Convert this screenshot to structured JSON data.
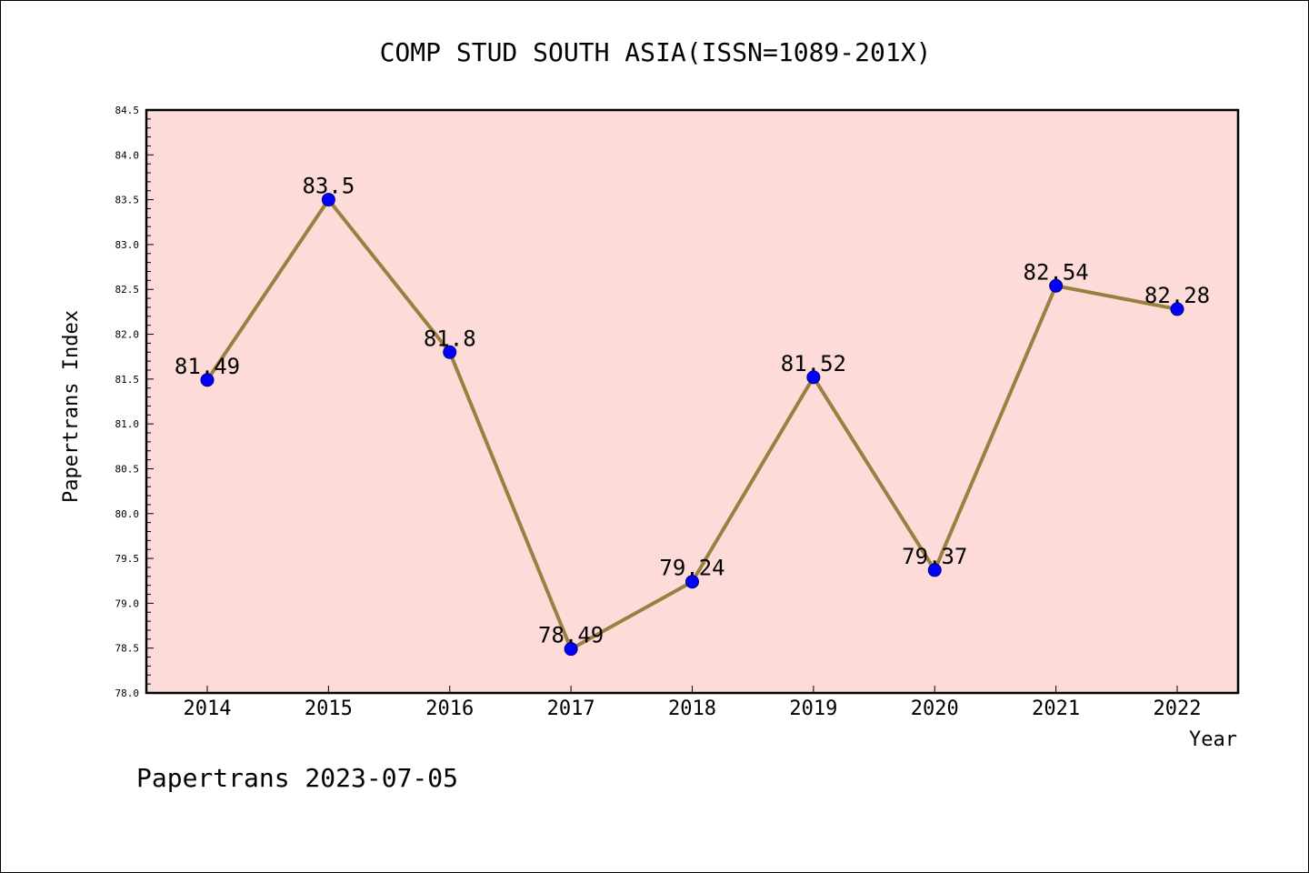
{
  "chart_data": {
    "type": "line",
    "title": "COMP STUD SOUTH ASIA(ISSN=1089-201X)",
    "xlabel": "Year",
    "ylabel": "Papertrans Index",
    "categories": [
      "2014",
      "2015",
      "2016",
      "2017",
      "2018",
      "2019",
      "2020",
      "2021",
      "2022"
    ],
    "values": [
      81.49,
      83.5,
      81.8,
      78.49,
      79.24,
      81.52,
      79.37,
      82.54,
      82.28
    ],
    "data_labels": [
      "81.49",
      "83.5",
      "81.8",
      "78.49",
      "79.24",
      "81.52",
      "79.37",
      "82.54",
      "82.28"
    ],
    "ylim": [
      78.0,
      84.5
    ],
    "yticks": [
      "78.0",
      "78.5",
      "79.0",
      "79.5",
      "80.0",
      "80.5",
      "81.0",
      "81.5",
      "82.0",
      "82.5",
      "83.0",
      "83.5",
      "84.0",
      "84.5"
    ],
    "grid": false,
    "colors": {
      "plot_background": "#fddbd8",
      "line": "#9a8040",
      "marker": "#0000ff",
      "marker_edge": "#000080"
    }
  },
  "footer": "Papertrans 2023-07-05"
}
